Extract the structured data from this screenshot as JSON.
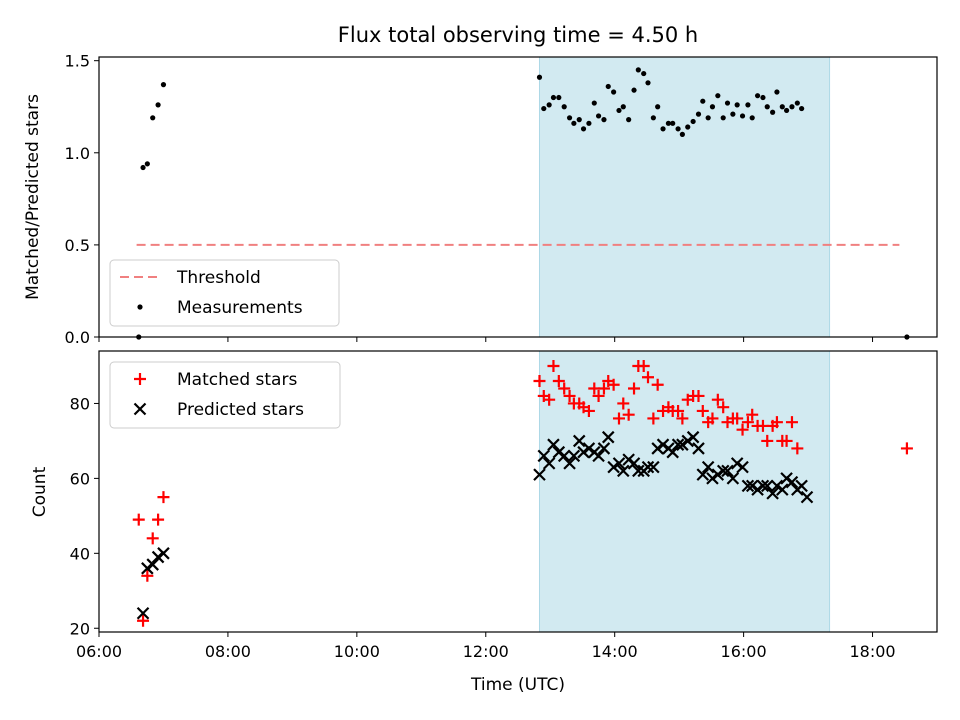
{
  "chart_data": [
    {
      "type": "scatter",
      "title": "Flux total observing time = 4.50 h",
      "xlabel": "",
      "ylabel": "Matched/Predicted stars",
      "xlim": [
        "06:00",
        "19:00"
      ],
      "ylim": [
        0,
        1.52
      ],
      "yticks": [
        "0.0",
        "0.5",
        "1.0",
        "1.5"
      ],
      "shaded_span": [
        "12:50",
        "17:20"
      ],
      "shade_color": "#add8e6",
      "grid": false,
      "legend_position": "lower-left",
      "threshold_line": {
        "name": "Threshold",
        "value": 0.5,
        "x_range": [
          "06:35",
          "18:25"
        ],
        "color": "#f08080",
        "style": "dashed"
      },
      "series": [
        {
          "name": "Measurements",
          "marker": "dot",
          "color": "#000000",
          "points": [
            [
              "06:37",
              0.0
            ],
            [
              "06:41",
              0.92
            ],
            [
              "06:45",
              0.94
            ],
            [
              "06:50",
              1.19
            ],
            [
              "06:55",
              1.26
            ],
            [
              "07:00",
              1.37
            ],
            [
              "18:32",
              0.0
            ],
            [
              "12:50",
              1.41
            ],
            [
              "12:54",
              1.24
            ],
            [
              "12:59",
              1.26
            ],
            [
              "13:03",
              1.3
            ],
            [
              "13:08",
              1.3
            ],
            [
              "13:13",
              1.25
            ],
            [
              "13:18",
              1.19
            ],
            [
              "13:22",
              1.16
            ],
            [
              "13:27",
              1.18
            ],
            [
              "13:31",
              1.13
            ],
            [
              "13:36",
              1.16
            ],
            [
              "13:41",
              1.27
            ],
            [
              "13:45",
              1.2
            ],
            [
              "13:50",
              1.18
            ],
            [
              "13:54",
              1.36
            ],
            [
              "13:59",
              1.33
            ],
            [
              "14:04",
              1.23
            ],
            [
              "14:08",
              1.25
            ],
            [
              "14:13",
              1.18
            ],
            [
              "14:18",
              1.34
            ],
            [
              "14:22",
              1.45
            ],
            [
              "14:27",
              1.43
            ],
            [
              "14:31",
              1.38
            ],
            [
              "14:36",
              1.19
            ],
            [
              "14:40",
              1.25
            ],
            [
              "14:45",
              1.13
            ],
            [
              "14:50",
              1.16
            ],
            [
              "14:54",
              1.16
            ],
            [
              "14:59",
              1.13
            ],
            [
              "15:03",
              1.1
            ],
            [
              "15:08",
              1.14
            ],
            [
              "15:13",
              1.17
            ],
            [
              "15:18",
              1.21
            ],
            [
              "15:22",
              1.28
            ],
            [
              "15:27",
              1.19
            ],
            [
              "15:31",
              1.25
            ],
            [
              "15:36",
              1.31
            ],
            [
              "15:41",
              1.19
            ],
            [
              "15:45",
              1.27
            ],
            [
              "15:50",
              1.21
            ],
            [
              "15:54",
              1.26
            ],
            [
              "15:59",
              1.2
            ],
            [
              "16:04",
              1.26
            ],
            [
              "16:08",
              1.19
            ],
            [
              "16:13",
              1.31
            ],
            [
              "16:18",
              1.3
            ],
            [
              "16:22",
              1.25
            ],
            [
              "16:27",
              1.22
            ],
            [
              "16:31",
              1.33
            ],
            [
              "16:36",
              1.25
            ],
            [
              "16:40",
              1.23
            ],
            [
              "16:45",
              1.25
            ],
            [
              "16:50",
              1.27
            ],
            [
              "16:54",
              1.24
            ]
          ]
        }
      ]
    },
    {
      "type": "scatter",
      "title": "",
      "xlabel": "Time (UTC)",
      "ylabel": "Count",
      "xlim": [
        "06:00",
        "19:00"
      ],
      "ylim": [
        19,
        94
      ],
      "xticks": [
        "06:00",
        "08:00",
        "10:00",
        "12:00",
        "14:00",
        "16:00",
        "18:00"
      ],
      "yticks": [
        "20",
        "40",
        "60",
        "80"
      ],
      "shaded_span": [
        "12:50",
        "17:20"
      ],
      "shade_color": "#add8e6",
      "grid": false,
      "legend_position": "upper-left",
      "series": [
        {
          "name": "Matched stars",
          "marker": "plus",
          "color": "#ff0000",
          "points": [
            [
              "06:37",
              49
            ],
            [
              "06:41",
              22
            ],
            [
              "06:45",
              34
            ],
            [
              "06:50",
              44
            ],
            [
              "06:55",
              49
            ],
            [
              "07:00",
              55
            ],
            [
              "18:32",
              68
            ],
            [
              "12:50",
              86
            ],
            [
              "12:54",
              82
            ],
            [
              "12:59",
              81
            ],
            [
              "13:03",
              90
            ],
            [
              "13:08",
              86
            ],
            [
              "13:13",
              84
            ],
            [
              "13:18",
              82
            ],
            [
              "13:22",
              80
            ],
            [
              "13:27",
              80
            ],
            [
              "13:31",
              79
            ],
            [
              "13:36",
              78
            ],
            [
              "13:41",
              84
            ],
            [
              "13:45",
              82
            ],
            [
              "13:50",
              84
            ],
            [
              "13:54",
              86
            ],
            [
              "13:59",
              85
            ],
            [
              "14:04",
              76
            ],
            [
              "14:08",
              80
            ],
            [
              "14:13",
              77
            ],
            [
              "14:18",
              84
            ],
            [
              "14:22",
              90
            ],
            [
              "14:27",
              90
            ],
            [
              "14:31",
              87
            ],
            [
              "14:36",
              76
            ],
            [
              "14:40",
              85
            ],
            [
              "14:45",
              78
            ],
            [
              "14:50",
              79
            ],
            [
              "14:54",
              78
            ],
            [
              "14:59",
              78
            ],
            [
              "15:03",
              76
            ],
            [
              "15:08",
              81
            ],
            [
              "15:13",
              82
            ],
            [
              "15:18",
              82
            ],
            [
              "15:22",
              78
            ],
            [
              "15:27",
              75
            ],
            [
              "15:31",
              76
            ],
            [
              "15:36",
              81
            ],
            [
              "15:41",
              79
            ],
            [
              "15:45",
              75
            ],
            [
              "15:50",
              76
            ],
            [
              "15:54",
              76
            ],
            [
              "15:59",
              73
            ],
            [
              "16:04",
              75
            ],
            [
              "16:08",
              77
            ],
            [
              "16:13",
              74
            ],
            [
              "16:18",
              74
            ],
            [
              "16:22",
              70
            ],
            [
              "16:27",
              74
            ],
            [
              "16:31",
              75
            ],
            [
              "16:36",
              70
            ],
            [
              "16:40",
              70
            ],
            [
              "16:45",
              75
            ],
            [
              "16:50",
              68
            ]
          ]
        },
        {
          "name": "Predicted stars",
          "marker": "x",
          "color": "#000000",
          "points": [
            [
              "06:41",
              24
            ],
            [
              "06:45",
              36
            ],
            [
              "06:50",
              37
            ],
            [
              "06:55",
              39
            ],
            [
              "07:00",
              40
            ],
            [
              "12:50",
              61
            ],
            [
              "12:54",
              66
            ],
            [
              "12:59",
              64
            ],
            [
              "13:03",
              69
            ],
            [
              "13:08",
              67
            ],
            [
              "13:13",
              66
            ],
            [
              "13:18",
              64
            ],
            [
              "13:22",
              66
            ],
            [
              "13:27",
              70
            ],
            [
              "13:31",
              67
            ],
            [
              "13:36",
              68
            ],
            [
              "13:41",
              67
            ],
            [
              "13:45",
              66
            ],
            [
              "13:50",
              68
            ],
            [
              "13:54",
              71
            ],
            [
              "13:59",
              63
            ],
            [
              "14:04",
              64
            ],
            [
              "14:08",
              62
            ],
            [
              "14:13",
              65
            ],
            [
              "14:18",
              64
            ],
            [
              "14:22",
              62
            ],
            [
              "14:27",
              62
            ],
            [
              "14:31",
              63
            ],
            [
              "14:36",
              63
            ],
            [
              "14:40",
              68
            ],
            [
              "14:45",
              69
            ],
            [
              "14:50",
              68
            ],
            [
              "14:54",
              67
            ],
            [
              "14:59",
              69
            ],
            [
              "15:03",
              69
            ],
            [
              "15:08",
              70
            ],
            [
              "15:13",
              71
            ],
            [
              "15:18",
              68
            ],
            [
              "15:22",
              61
            ],
            [
              "15:27",
              63
            ],
            [
              "15:31",
              60
            ],
            [
              "15:36",
              61
            ],
            [
              "15:41",
              62
            ],
            [
              "15:45",
              62
            ],
            [
              "15:50",
              60
            ],
            [
              "15:54",
              64
            ],
            [
              "15:59",
              63
            ],
            [
              "16:04",
              58
            ],
            [
              "16:08",
              58
            ],
            [
              "16:13",
              57
            ],
            [
              "16:18",
              58
            ],
            [
              "16:22",
              58
            ],
            [
              "16:27",
              56
            ],
            [
              "16:31",
              58
            ],
            [
              "16:36",
              57
            ],
            [
              "16:40",
              60
            ],
            [
              "16:45",
              59
            ],
            [
              "16:50",
              57
            ],
            [
              "16:54",
              58
            ],
            [
              "16:59",
              55
            ]
          ]
        }
      ]
    }
  ]
}
